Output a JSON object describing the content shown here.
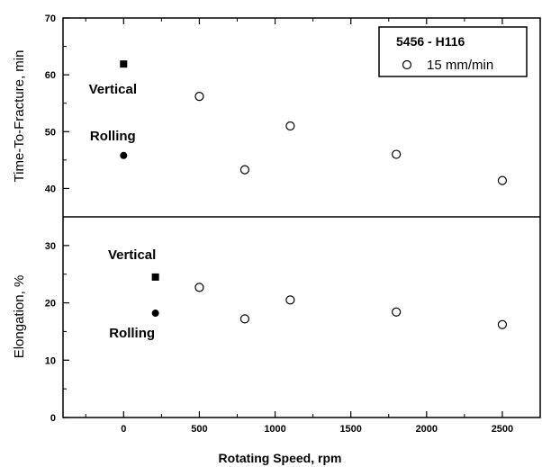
{
  "chart_data": [
    {
      "type": "scatter",
      "panel": "top",
      "ylabel": "Time-To-Fracture, min",
      "ylim": [
        35,
        70
      ],
      "yticks": [
        40,
        50,
        60,
        70
      ],
      "xlim": [
        -400,
        2750
      ],
      "series": [
        {
          "name": "15 mm/min",
          "marker": "open-circle",
          "x": [
            500,
            800,
            1100,
            1800,
            2500
          ],
          "y": [
            56.2,
            43.3,
            51.0,
            46.0,
            41.4
          ]
        },
        {
          "marker": "filled-square",
          "x": [
            0
          ],
          "y": [
            61.9
          ]
        },
        {
          "marker": "filled-circle",
          "x": [
            0
          ],
          "y": [
            45.8
          ]
        }
      ],
      "annotations": [
        {
          "text": "Vertical",
          "x": 0,
          "y": 61.9
        },
        {
          "text": "Rolling",
          "x": 0,
          "y": 45.8
        }
      ]
    },
    {
      "type": "scatter",
      "panel": "bottom",
      "ylabel": "Elongation, %",
      "xlabel": "Rotating Speed, rpm",
      "ylim": [
        0,
        35
      ],
      "yticks": [
        0,
        10,
        20,
        30
      ],
      "xlim": [
        -400,
        2750
      ],
      "xticks": [
        0,
        500,
        1000,
        1500,
        2000,
        2500
      ],
      "series": [
        {
          "name": "15 mm/min",
          "marker": "open-circle",
          "x": [
            500,
            800,
            1100,
            1800,
            2500
          ],
          "y": [
            22.7,
            17.2,
            20.5,
            18.4,
            16.2
          ]
        },
        {
          "marker": "filled-square",
          "x": [
            210
          ],
          "y": [
            24.5
          ]
        },
        {
          "marker": "filled-circle",
          "x": [
            210
          ],
          "y": [
            18.2
          ]
        }
      ],
      "annotations": [
        {
          "text": "Vertical",
          "x": 210,
          "y": 24.5
        },
        {
          "text": "Rolling",
          "x": 210,
          "y": 18.2
        }
      ]
    }
  ],
  "legend": {
    "title": "5456 - H116",
    "entries": [
      "15 mm/min"
    ],
    "placement": "top-right"
  }
}
